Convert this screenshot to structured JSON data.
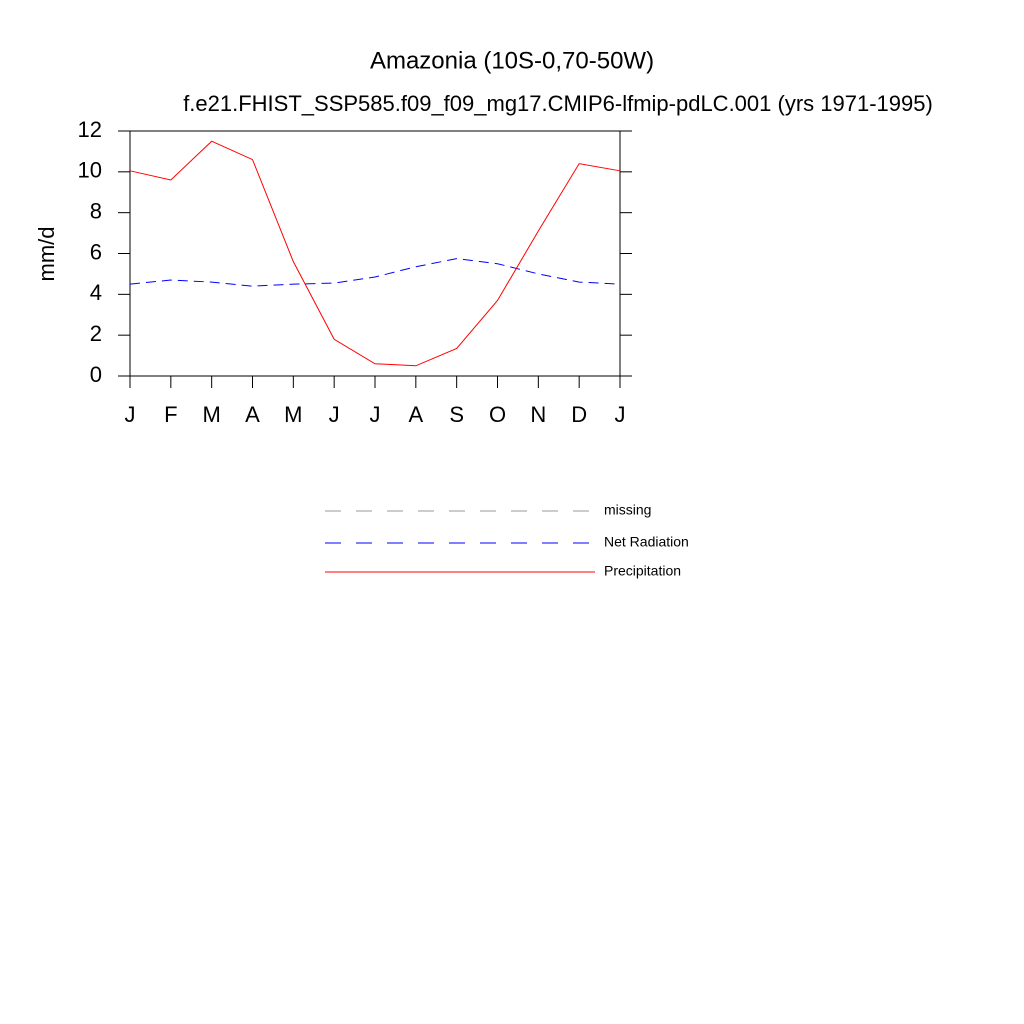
{
  "chart_data": {
    "type": "line",
    "title": "Amazonia (10S-0,70-50W)",
    "subtitle": "f.e21.FHIST_SSP585.f09_f09_mg17.CMIP6-lfmip-pdLC.001 (yrs 1971-1995)",
    "y_label": "mm/d",
    "categories": [
      "J",
      "F",
      "M",
      "A",
      "M",
      "J",
      "J",
      "A",
      "S",
      "O",
      "N",
      "D",
      "J"
    ],
    "ylim": [
      0,
      12
    ],
    "yticks": [
      0,
      2,
      4,
      6,
      8,
      10,
      12
    ],
    "series": [
      {
        "name": "missing",
        "color": "#999999",
        "dash": true,
        "values": [
          null,
          null,
          null,
          null,
          null,
          null,
          null,
          null,
          null,
          null,
          null,
          null,
          null
        ]
      },
      {
        "name": "Net Radiation",
        "color": "#0000ff",
        "dash": true,
        "values": [
          4.5,
          4.7,
          4.6,
          4.4,
          4.5,
          4.55,
          4.85,
          5.35,
          5.75,
          5.5,
          5.0,
          4.6,
          4.5
        ]
      },
      {
        "name": "Precipitation",
        "color": "#ff0000",
        "dash": false,
        "values": [
          10.05,
          9.6,
          11.5,
          10.6,
          5.6,
          1.8,
          0.6,
          0.5,
          1.35,
          3.7,
          7.1,
          10.4,
          10.05
        ]
      }
    ]
  }
}
